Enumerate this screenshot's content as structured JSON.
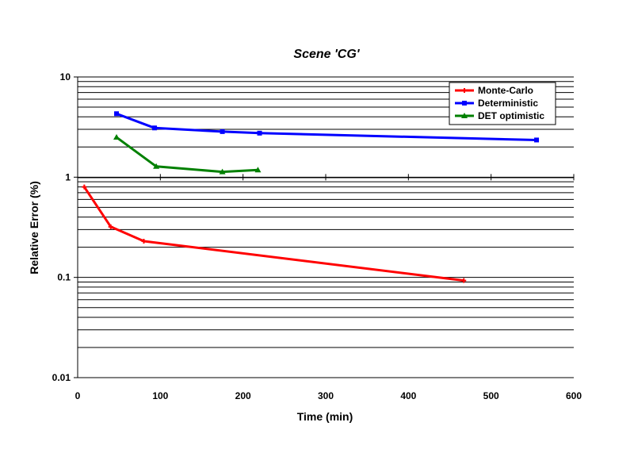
{
  "chart_data": {
    "type": "line",
    "title": "Scene  'CG'",
    "xlabel": "Time (min)",
    "ylabel": "Relative Error (%)",
    "xlim": [
      0,
      600
    ],
    "ylim": [
      0.01,
      10
    ],
    "yscale": "log",
    "x_ticks": [
      0,
      100,
      200,
      300,
      400,
      500,
      600
    ],
    "x_tick_labels": [
      "0",
      "100",
      "200",
      "300",
      "400",
      "500",
      "600"
    ],
    "y_ticks": [
      0.01,
      0.1,
      1,
      10
    ],
    "y_tick_labels": [
      "0.01",
      "0.1",
      "1",
      "10"
    ],
    "grid": "horizontal major and minor",
    "legend_position": "top-right",
    "series": [
      {
        "name": "Monte-Carlo",
        "color": "#ff0000",
        "marker": "plus",
        "x": [
          8,
          40,
          80,
          467
        ],
        "y": [
          0.8,
          0.32,
          0.23,
          0.093
        ]
      },
      {
        "name": "Deterministic",
        "color": "#0000ff",
        "marker": "square",
        "x": [
          47,
          93,
          175,
          220,
          555
        ],
        "y": [
          4.3,
          3.1,
          2.85,
          2.75,
          2.35
        ]
      },
      {
        "name": "DET optimistic",
        "color": "#008000",
        "marker": "triangle",
        "x": [
          47,
          95,
          175,
          218
        ],
        "y": [
          2.5,
          1.28,
          1.13,
          1.18
        ]
      }
    ]
  }
}
